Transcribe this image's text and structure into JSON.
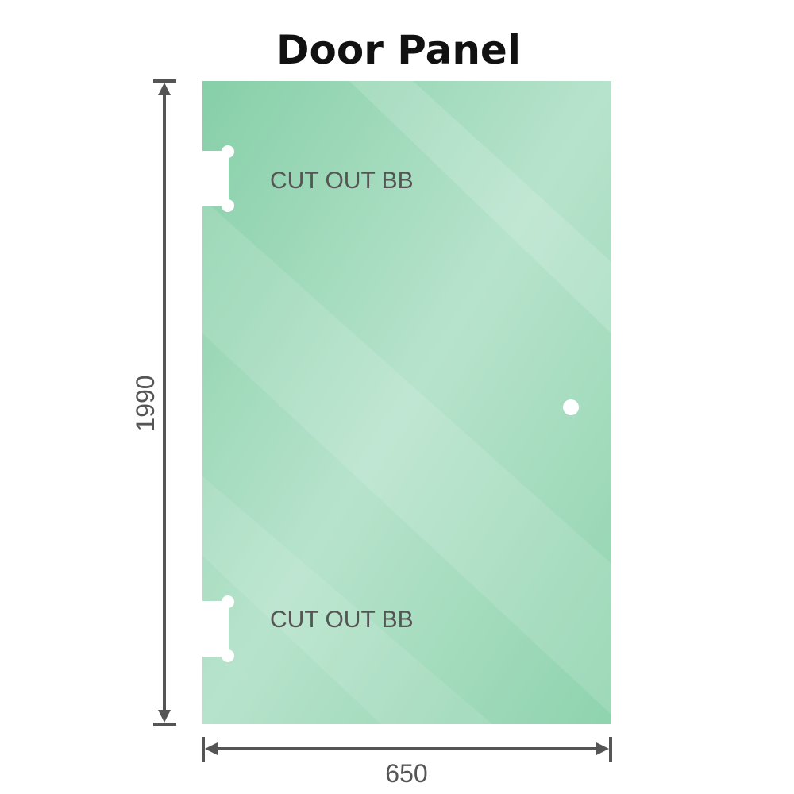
{
  "title": "Door Panel",
  "cutouts": [
    {
      "label": "CUT OUT BB"
    },
    {
      "label": "CUT OUT BB"
    }
  ],
  "dimensions": {
    "height": "1990",
    "width": "650"
  },
  "colors": {
    "glass": "#86cfa8",
    "glass_light": "#bde6d2",
    "dimension_line": "#555555"
  }
}
